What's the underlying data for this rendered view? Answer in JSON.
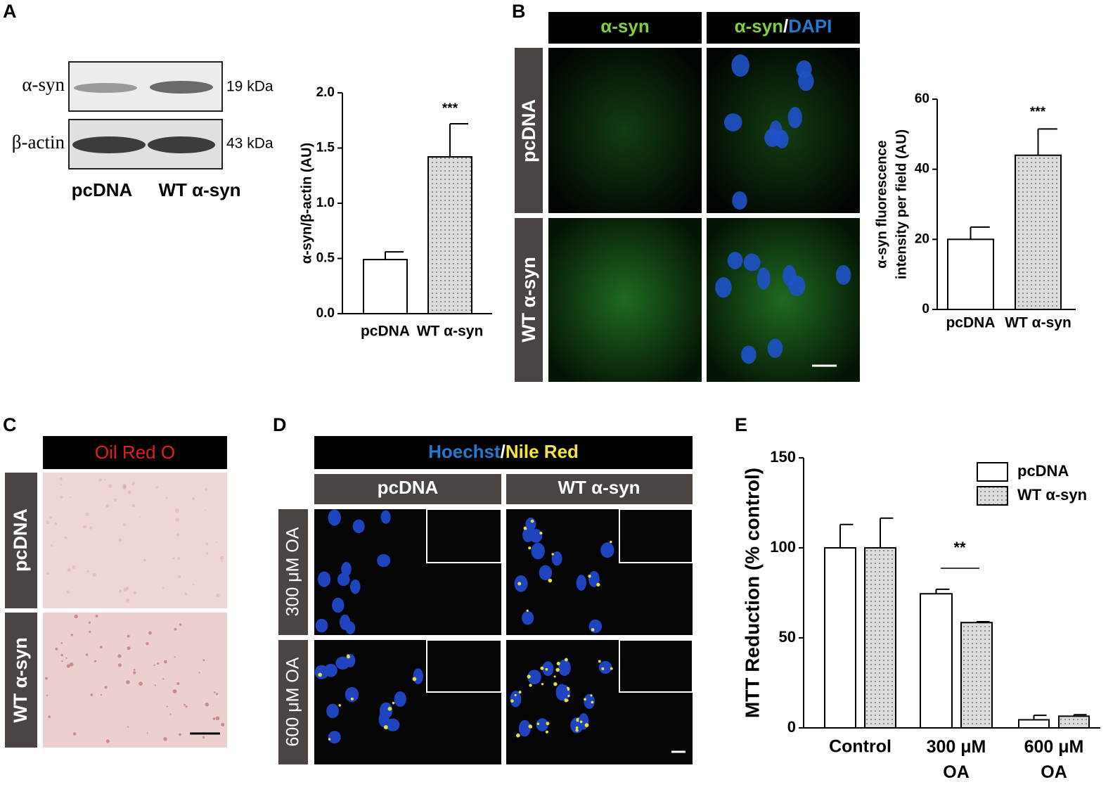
{
  "figure": {
    "panel_labels": [
      "A",
      "B",
      "C",
      "D",
      "E"
    ],
    "blot": {
      "bands": [
        "α-syn",
        "β-actin"
      ],
      "sizes": [
        "19 kDa",
        "43 kDa"
      ],
      "lanes": [
        "pcDNA",
        "WT α-syn"
      ]
    },
    "panel_b": {
      "columns": [
        [
          "α-syn"
        ],
        [
          "α-syn",
          "/",
          "DAPI"
        ]
      ],
      "rows": [
        "pcDNA",
        "WT α-syn"
      ]
    },
    "panel_c": {
      "header": "Oil Red O",
      "rows": [
        "pcDNA",
        "WT α-syn"
      ]
    },
    "panel_d": {
      "header": [
        "Hoechst",
        "/",
        "Nile Red"
      ],
      "columns": [
        "pcDNA",
        "WT α-syn"
      ],
      "rows": [
        "300 μM OA",
        "600 μM OA"
      ]
    }
  },
  "chart_data": [
    {
      "type": "bar",
      "ylabel": "α-syn/β-actin (AU)",
      "categories": [
        "pcDNA",
        "WT α-syn"
      ],
      "values": [
        0.49,
        1.42
      ],
      "errors": [
        0.07,
        0.3
      ],
      "colors": [
        "#ffffff",
        "#dcdcdc"
      ],
      "dotted": [
        false,
        true
      ],
      "ylim": [
        0,
        2
      ],
      "yticks": [
        {
          "value": 0,
          "label": "0.0"
        },
        {
          "value": 0.5,
          "label": "0.5"
        },
        {
          "value": 1,
          "label": "1.0"
        },
        {
          "value": 1.5,
          "label": "1.5"
        },
        {
          "value": 2,
          "label": "2.0"
        }
      ],
      "annotation": "***"
    },
    {
      "type": "bar",
      "ylabel": [
        "α-syn fluorescence",
        "intensity per field (AU)"
      ],
      "categories": [
        "pcDNA",
        "WT α-syn"
      ],
      "values": [
        20,
        44
      ],
      "errors": [
        3.5,
        7.5
      ],
      "colors": [
        "#ffffff",
        "#dcdcdc"
      ],
      "dotted": [
        false,
        true
      ],
      "ylim": [
        0,
        60
      ],
      "yticks": [
        0,
        20,
        40,
        60
      ],
      "annotation": "***"
    },
    {
      "type": "grouped-bar",
      "ylabel": "MTT Reduction (% control)",
      "categories": [
        "Control",
        "300 μM OA",
        "600 μM OA"
      ],
      "series": [
        {
          "name": "pcDNA",
          "color": "#ffffff",
          "dotted": false,
          "values": [
            100,
            74.5,
            4.5
          ],
          "errors": [
            13,
            2.5,
            2.5
          ]
        },
        {
          "name": "WT α-syn",
          "color": "#dcdcdc",
          "dotted": true,
          "values": [
            100,
            58.5,
            6.5
          ],
          "errors": [
            16.5,
            0.5,
            0.8
          ]
        }
      ],
      "ylim": [
        0,
        150
      ],
      "yticks": [
        0,
        50,
        100,
        150
      ],
      "legend": "top-right",
      "annotation": "**"
    }
  ]
}
